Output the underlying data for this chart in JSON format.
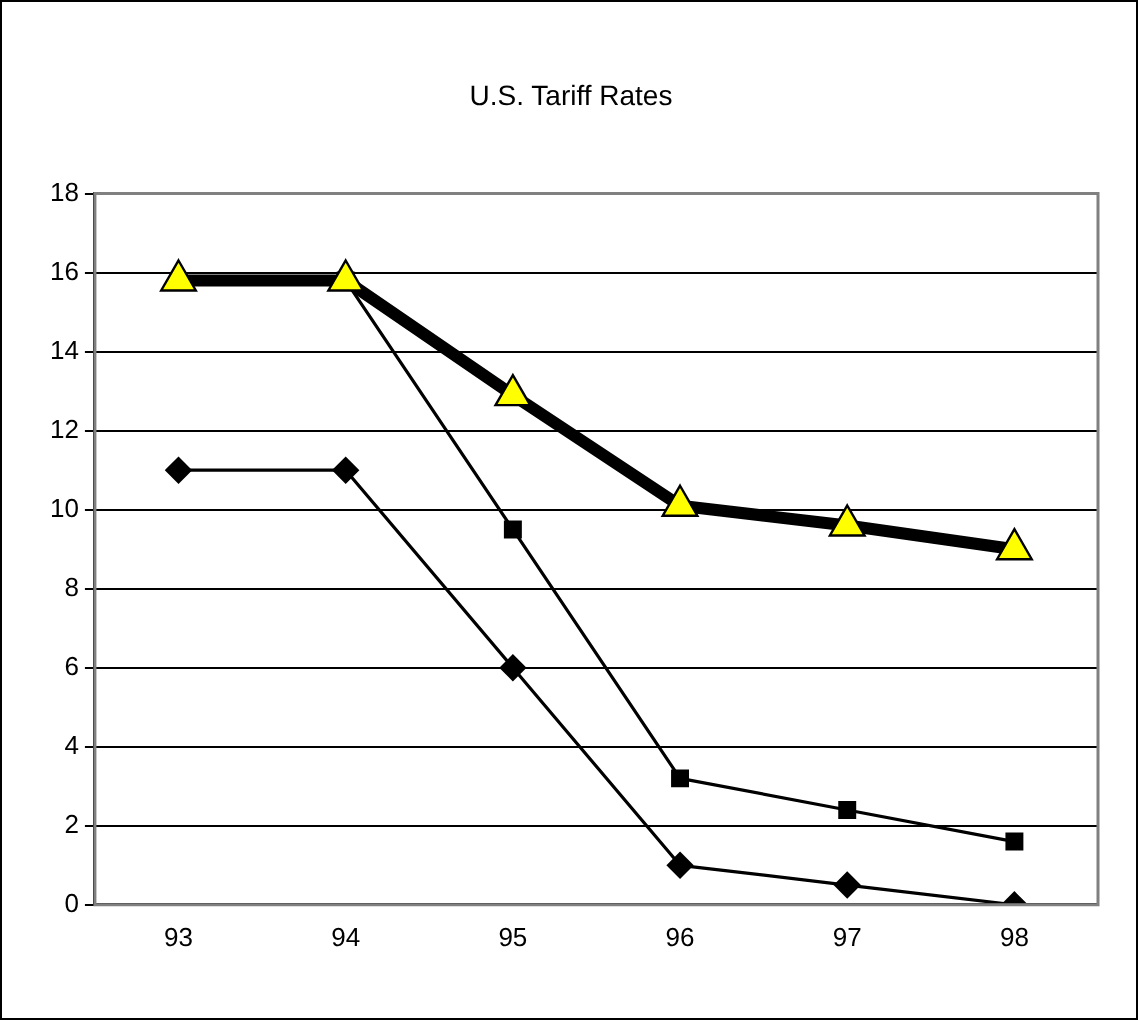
{
  "chart_data": {
    "type": "line",
    "title": "U.S. Tariff Rates",
    "categories": [
      "93",
      "94",
      "95",
      "96",
      "97",
      "98"
    ],
    "series": [
      {
        "color": "#000000",
        "values": [
          11,
          11,
          6,
          1,
          0.5,
          0
        ],
        "marker": "diamond"
      },
      {
        "color": "#000000",
        "values": [
          null,
          15.8,
          9.5,
          3.2,
          2.4,
          1.6
        ],
        "marker": "square"
      },
      {
        "color": "#000000",
        "values": [
          15.8,
          15.8,
          12.9,
          10.1,
          9.6,
          9.0
        ],
        "marker": "triangle",
        "colors": [
          "#ffff00",
          "#ffff00",
          "#ffff00",
          "#ffff00",
          "#ffff00",
          "#ffff00"
        ]
      }
    ],
    "ylim": [
      0,
      18
    ],
    "yticks": [
      0,
      2,
      4,
      6,
      8,
      10,
      12,
      14,
      16,
      18
    ],
    "grid": "y",
    "legend": false,
    "line_style": "solid"
  }
}
